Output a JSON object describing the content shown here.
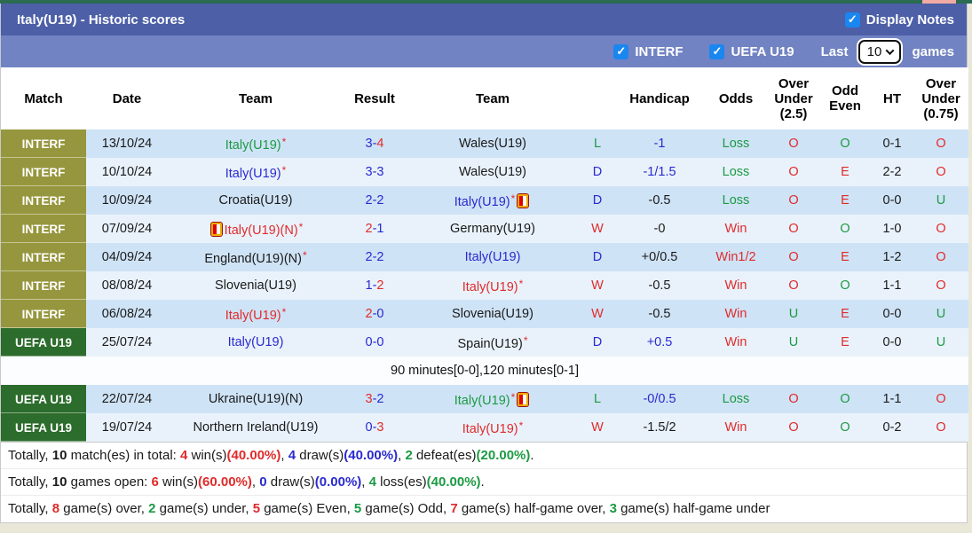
{
  "header": {
    "title": "Italy(U19) - Historic scores",
    "display_notes_label": "Display Notes",
    "display_notes_checked": true
  },
  "filter_bar": {
    "interf_label": "INTERF",
    "interf_checked": true,
    "uefa_label": "UEFA U19",
    "uefa_checked": true,
    "last_label": "Last",
    "games_label": "games",
    "select_value": "10"
  },
  "colors": {
    "title_bar": "#4c5fa7",
    "filter_bar": "#7183c3",
    "checkbox_blue": "#1a86f0",
    "interf_olive": "#96963e",
    "uefa_green": "#2c6c2c",
    "row_dark": "#cfe3f6",
    "row_light": "#e9f2fb",
    "win_red": "#e02b2b",
    "draw_blue": "#2a2ad0",
    "loss_green": "#1b9a43"
  },
  "table": {
    "columns": [
      {
        "key": "match",
        "label": [
          "Match"
        ]
      },
      {
        "key": "date",
        "label": [
          "Date"
        ]
      },
      {
        "key": "team-home",
        "label": [
          "Team"
        ]
      },
      {
        "key": "result",
        "label": [
          "Result"
        ]
      },
      {
        "key": "team-away",
        "label": [
          "Team"
        ]
      },
      {
        "key": "wld",
        "label": [
          ""
        ]
      },
      {
        "key": "handicap",
        "label": [
          "Handicap"
        ]
      },
      {
        "key": "odds",
        "label": [
          "Odds"
        ]
      },
      {
        "key": "over-under-25",
        "label": [
          "Over",
          "Under",
          "(2.5)"
        ]
      },
      {
        "key": "odd-even",
        "label": [
          "Odd",
          "Even"
        ]
      },
      {
        "key": "ht",
        "label": [
          "HT"
        ]
      },
      {
        "key": "over-under-075",
        "label": [
          "Over",
          "Under",
          "(0.75)"
        ]
      }
    ],
    "rows": [
      {
        "shade": "dark",
        "league": "INTERF",
        "league_class": "interf",
        "date": "13/10/24",
        "home": {
          "text": "Italy(U19)",
          "color": "green",
          "star": "*"
        },
        "result": {
          "home": "3",
          "home_color": "blue",
          "away": "4",
          "away_color": "red"
        },
        "away": {
          "text": "Wales(U19)",
          "color": "black"
        },
        "wld": {
          "text": "L",
          "color": "green"
        },
        "handicap": {
          "text": "-1",
          "color": "blue"
        },
        "odds": {
          "text": "Loss",
          "color": "green"
        },
        "ou25": {
          "text": "O",
          "color": "red"
        },
        "oddeven": {
          "text": "O",
          "color": "green"
        },
        "ht": "0-1",
        "ou075": {
          "text": "O",
          "color": "red"
        }
      },
      {
        "shade": "light",
        "league": "INTERF",
        "league_class": "interf",
        "date": "10/10/24",
        "home": {
          "text": "Italy(U19)",
          "color": "blue",
          "star": "*"
        },
        "result": {
          "home": "3",
          "home_color": "blue",
          "away": "3",
          "away_color": "blue"
        },
        "away": {
          "text": "Wales(U19)",
          "color": "black"
        },
        "wld": {
          "text": "D",
          "color": "blue"
        },
        "handicap": {
          "text": "-1/1.5",
          "color": "blue"
        },
        "odds": {
          "text": "Loss",
          "color": "green"
        },
        "ou25": {
          "text": "O",
          "color": "red"
        },
        "oddeven": {
          "text": "E",
          "color": "red"
        },
        "ht": "2-2",
        "ou075": {
          "text": "O",
          "color": "red"
        }
      },
      {
        "shade": "dark",
        "league": "INTERF",
        "league_class": "interf",
        "date": "10/09/24",
        "home": {
          "text": "Croatia(U19)",
          "color": "black"
        },
        "result": {
          "home": "2",
          "home_color": "blue",
          "away": "2",
          "away_color": "blue"
        },
        "away": {
          "text": "Italy(U19)",
          "color": "blue",
          "star": "*",
          "card_after": true
        },
        "wld": {
          "text": "D",
          "color": "blue"
        },
        "handicap": {
          "text": "-0.5",
          "color": "black"
        },
        "odds": {
          "text": "Loss",
          "color": "green"
        },
        "ou25": {
          "text": "O",
          "color": "red"
        },
        "oddeven": {
          "text": "E",
          "color": "red"
        },
        "ht": "0-0",
        "ou075": {
          "text": "U",
          "color": "green"
        }
      },
      {
        "shade": "light",
        "league": "INTERF",
        "league_class": "interf",
        "date": "07/09/24",
        "home": {
          "text": "Italy(U19)(N)",
          "color": "red",
          "star": "*",
          "card_before": true
        },
        "result": {
          "home": "2",
          "home_color": "red",
          "away": "1",
          "away_color": "blue"
        },
        "away": {
          "text": "Germany(U19)",
          "color": "black"
        },
        "wld": {
          "text": "W",
          "color": "red"
        },
        "handicap": {
          "text": "-0",
          "color": "black"
        },
        "odds": {
          "text": "Win",
          "color": "red"
        },
        "ou25": {
          "text": "O",
          "color": "red"
        },
        "oddeven": {
          "text": "O",
          "color": "green"
        },
        "ht": "1-0",
        "ou075": {
          "text": "O",
          "color": "red"
        }
      },
      {
        "shade": "dark",
        "league": "INTERF",
        "league_class": "interf",
        "date": "04/09/24",
        "home": {
          "text": "England(U19)(N)",
          "color": "black",
          "star": "*"
        },
        "result": {
          "home": "2",
          "home_color": "blue",
          "away": "2",
          "away_color": "blue"
        },
        "away": {
          "text": "Italy(U19)",
          "color": "blue"
        },
        "wld": {
          "text": "D",
          "color": "blue"
        },
        "handicap": {
          "text": "+0/0.5",
          "color": "black"
        },
        "odds": {
          "text": "Win1/2",
          "color": "red"
        },
        "ou25": {
          "text": "O",
          "color": "red"
        },
        "oddeven": {
          "text": "E",
          "color": "red"
        },
        "ht": "1-2",
        "ou075": {
          "text": "O",
          "color": "red"
        }
      },
      {
        "shade": "light",
        "league": "INTERF",
        "league_class": "interf",
        "date": "08/08/24",
        "home": {
          "text": "Slovenia(U19)",
          "color": "black"
        },
        "result": {
          "home": "1",
          "home_color": "blue",
          "away": "2",
          "away_color": "red"
        },
        "away": {
          "text": "Italy(U19)",
          "color": "red",
          "star": "*"
        },
        "wld": {
          "text": "W",
          "color": "red"
        },
        "handicap": {
          "text": "-0.5",
          "color": "black"
        },
        "odds": {
          "text": "Win",
          "color": "red"
        },
        "ou25": {
          "text": "O",
          "color": "red"
        },
        "oddeven": {
          "text": "O",
          "color": "green"
        },
        "ht": "1-1",
        "ou075": {
          "text": "O",
          "color": "red"
        }
      },
      {
        "shade": "dark",
        "league": "INTERF",
        "league_class": "interf",
        "date": "06/08/24",
        "home": {
          "text": "Italy(U19)",
          "color": "red",
          "star": "*"
        },
        "result": {
          "home": "2",
          "home_color": "red",
          "away": "0",
          "away_color": "blue"
        },
        "away": {
          "text": "Slovenia(U19)",
          "color": "black"
        },
        "wld": {
          "text": "W",
          "color": "red"
        },
        "handicap": {
          "text": "-0.5",
          "color": "black"
        },
        "odds": {
          "text": "Win",
          "color": "red"
        },
        "ou25": {
          "text": "U",
          "color": "green"
        },
        "oddeven": {
          "text": "E",
          "color": "red"
        },
        "ht": "0-0",
        "ou075": {
          "text": "U",
          "color": "green"
        }
      },
      {
        "shade": "light",
        "league": "UEFA U19",
        "league_class": "uefa",
        "date": "25/07/24",
        "home": {
          "text": "Italy(U19)",
          "color": "blue"
        },
        "result": {
          "home": "0",
          "home_color": "blue",
          "away": "0",
          "away_color": "blue"
        },
        "away": {
          "text": "Spain(U19)",
          "color": "black",
          "star": "*"
        },
        "wld": {
          "text": "D",
          "color": "blue"
        },
        "handicap": {
          "text": "+0.5",
          "color": "blue"
        },
        "odds": {
          "text": "Win",
          "color": "red"
        },
        "ou25": {
          "text": "U",
          "color": "green"
        },
        "oddeven": {
          "text": "E",
          "color": "red"
        },
        "ht": "0-0",
        "ou075": {
          "text": "U",
          "color": "green"
        }
      },
      {
        "type": "note",
        "shade": "note",
        "text": "90 minutes[0-0],120 minutes[0-1]"
      },
      {
        "shade": "dark",
        "league": "UEFA U19",
        "league_class": "uefa",
        "date": "22/07/24",
        "home": {
          "text": "Ukraine(U19)(N)",
          "color": "black"
        },
        "result": {
          "home": "3",
          "home_color": "red",
          "away": "2",
          "away_color": "blue"
        },
        "away": {
          "text": "Italy(U19)",
          "color": "green",
          "star": "*",
          "card_after": true
        },
        "wld": {
          "text": "L",
          "color": "green"
        },
        "handicap": {
          "text": "-0/0.5",
          "color": "blue"
        },
        "odds": {
          "text": "Loss",
          "color": "green"
        },
        "ou25": {
          "text": "O",
          "color": "red"
        },
        "oddeven": {
          "text": "O",
          "color": "green"
        },
        "ht": "1-1",
        "ou075": {
          "text": "O",
          "color": "red"
        }
      },
      {
        "shade": "light",
        "league": "UEFA U19",
        "league_class": "uefa",
        "date": "19/07/24",
        "home": {
          "text": "Northern Ireland(U19)",
          "color": "black"
        },
        "result": {
          "home": "0",
          "home_color": "blue",
          "away": "3",
          "away_color": "red"
        },
        "away": {
          "text": "Italy(U19)",
          "color": "red",
          "star": "*"
        },
        "wld": {
          "text": "W",
          "color": "red"
        },
        "handicap": {
          "text": "-1.5/2",
          "color": "black"
        },
        "odds": {
          "text": "Win",
          "color": "red"
        },
        "ou25": {
          "text": "O",
          "color": "red"
        },
        "oddeven": {
          "text": "O",
          "color": "green"
        },
        "ht": "0-2",
        "ou075": {
          "text": "O",
          "color": "red"
        }
      }
    ]
  },
  "summary": {
    "lines": [
      {
        "segments": [
          {
            "t": "Totally, "
          },
          {
            "t": "10",
            "b": 1
          },
          {
            "t": " match(es) in total: "
          },
          {
            "t": "4",
            "c": "red",
            "b": 1
          },
          {
            "t": " win(s)"
          },
          {
            "t": "(40.00%)",
            "c": "red",
            "b": 1
          },
          {
            "t": ", "
          },
          {
            "t": "4",
            "c": "blue",
            "b": 1
          },
          {
            "t": " draw(s)"
          },
          {
            "t": "(40.00%)",
            "c": "blue",
            "b": 1
          },
          {
            "t": ", "
          },
          {
            "t": "2",
            "c": "green",
            "b": 1
          },
          {
            "t": " defeat(es)"
          },
          {
            "t": "(20.00%)",
            "c": "green",
            "b": 1
          },
          {
            "t": "."
          }
        ]
      },
      {
        "segments": [
          {
            "t": "Totally, "
          },
          {
            "t": "10",
            "b": 1
          },
          {
            "t": " games open: "
          },
          {
            "t": "6",
            "c": "red",
            "b": 1
          },
          {
            "t": " win(s)"
          },
          {
            "t": "(60.00%)",
            "c": "red",
            "b": 1
          },
          {
            "t": ", "
          },
          {
            "t": "0",
            "c": "blue",
            "b": 1
          },
          {
            "t": " draw(s)"
          },
          {
            "t": "(0.00%)",
            "c": "blue",
            "b": 1
          },
          {
            "t": ", "
          },
          {
            "t": "4",
            "c": "green",
            "b": 1
          },
          {
            "t": " loss(es)"
          },
          {
            "t": "(40.00%)",
            "c": "green",
            "b": 1
          },
          {
            "t": "."
          }
        ]
      },
      {
        "segments": [
          {
            "t": "Totally, "
          },
          {
            "t": "8",
            "c": "red",
            "b": 1
          },
          {
            "t": " game(s) over, "
          },
          {
            "t": "2",
            "c": "green",
            "b": 1
          },
          {
            "t": " game(s) under, "
          },
          {
            "t": "5",
            "c": "red",
            "b": 1
          },
          {
            "t": " game(s) Even, "
          },
          {
            "t": "5",
            "c": "green",
            "b": 1
          },
          {
            "t": " game(s) Odd, "
          },
          {
            "t": "7",
            "c": "red",
            "b": 1
          },
          {
            "t": " game(s) half-game over, "
          },
          {
            "t": "3",
            "c": "green",
            "b": 1
          },
          {
            "t": " game(s) half-game under"
          }
        ]
      }
    ]
  }
}
